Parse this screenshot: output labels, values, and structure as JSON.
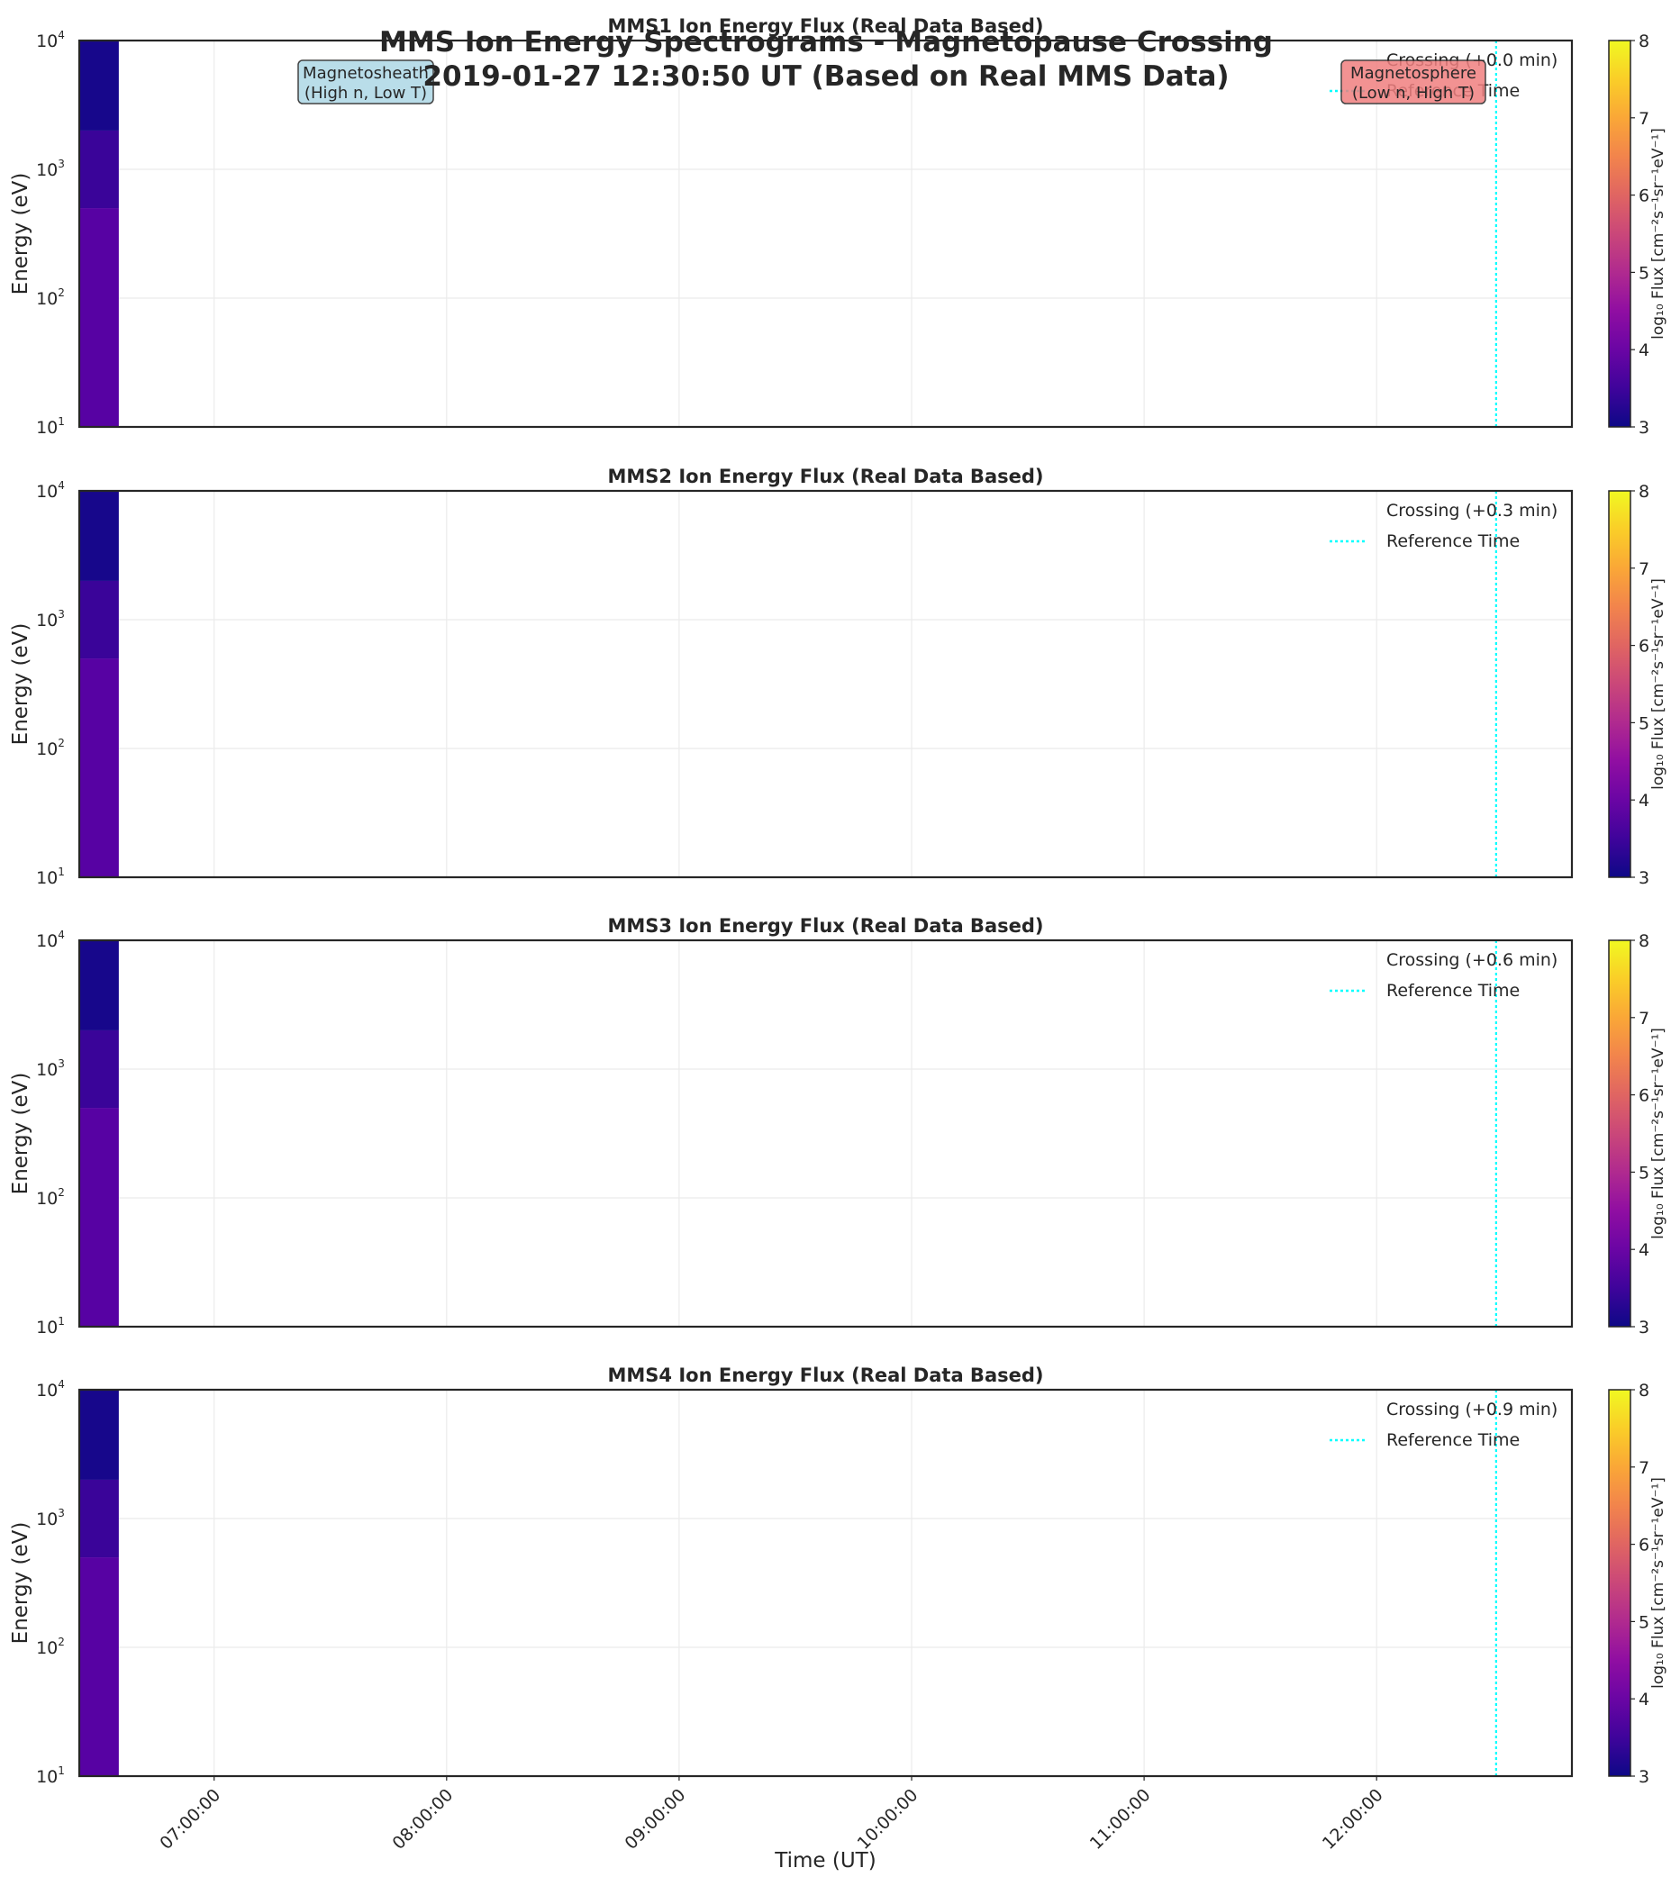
{
  "figure": {
    "suptitle_line1": "MMS Ion Energy Spectrograms - Magnetopause Crossing",
    "suptitle_line2": "2019-01-27 12:30:50 UT (Based on Real MMS Data)"
  },
  "chart_data": {
    "type": "heatmap",
    "xlabel": "Time (UT)",
    "ylabel": "Energy (eV)",
    "x_tick_labels": [
      "07:00:00",
      "08:00:00",
      "09:00:00",
      "10:00:00",
      "11:00:00",
      "12:00:00"
    ],
    "x_tick_hours": [
      7,
      8,
      9,
      10,
      11,
      12
    ],
    "xlim_hours": [
      6.42,
      12.84
    ],
    "reference_time_hours": 12.514,
    "yscale": "log",
    "ylim": [
      10,
      10000
    ],
    "y_ticks": [
      10,
      100,
      1000,
      10000
    ],
    "y_tick_bases": [
      "10",
      "10",
      "10",
      "10"
    ],
    "y_tick_exponents": [
      "1",
      "2",
      "3",
      "4"
    ],
    "colormap": "plasma",
    "colorbar": {
      "label": "log₁₀ Flux [cm⁻²s⁻¹sr⁻¹eV⁻¹]",
      "range": [
        3,
        8
      ],
      "tick_labels": [
        "3",
        "4",
        "5",
        "6",
        "7",
        "8"
      ],
      "tick_values": [
        3,
        4,
        5,
        6,
        7,
        8
      ]
    },
    "grid": true,
    "legend_position": "top-right",
    "legend_reference_label": "Reference Time",
    "panels": [
      {
        "title": "MMS1 Ion Energy Flux (Real Data Based)",
        "crossing_label": "Crossing (+0.0 min)",
        "data_time_range_hours": [
          6.42,
          6.59
        ],
        "flux_bands": [
          {
            "energy_range_eV": [
              10,
              500
            ],
            "log_flux": 3.75
          },
          {
            "energy_range_eV": [
              500,
              2000
            ],
            "log_flux": 3.45
          },
          {
            "energy_range_eV": [
              2000,
              10000
            ],
            "log_flux": 3.1
          }
        ],
        "annotations": [
          {
            "id": "magnetosheath",
            "line1": "Magnetosheath",
            "line2": "(High n, Low T)",
            "color": "#add8e6"
          },
          {
            "id": "magnetosphere",
            "line1": "Magnetosphere",
            "line2": "(Low n, High T)",
            "color": "#f08080"
          }
        ]
      },
      {
        "title": "MMS2 Ion Energy Flux (Real Data Based)",
        "crossing_label": "Crossing (+0.3 min)",
        "data_time_range_hours": [
          6.42,
          6.59
        ],
        "flux_bands": [
          {
            "energy_range_eV": [
              10,
              500
            ],
            "log_flux": 3.75
          },
          {
            "energy_range_eV": [
              500,
              2000
            ],
            "log_flux": 3.45
          },
          {
            "energy_range_eV": [
              2000,
              10000
            ],
            "log_flux": 3.1
          }
        ],
        "annotations": []
      },
      {
        "title": "MMS3 Ion Energy Flux (Real Data Based)",
        "crossing_label": "Crossing (+0.6 min)",
        "data_time_range_hours": [
          6.42,
          6.59
        ],
        "flux_bands": [
          {
            "energy_range_eV": [
              10,
              500
            ],
            "log_flux": 3.75
          },
          {
            "energy_range_eV": [
              500,
              2000
            ],
            "log_flux": 3.45
          },
          {
            "energy_range_eV": [
              2000,
              10000
            ],
            "log_flux": 3.1
          }
        ],
        "annotations": []
      },
      {
        "title": "MMS4 Ion Energy Flux (Real Data Based)",
        "crossing_label": "Crossing (+0.9 min)",
        "data_time_range_hours": [
          6.42,
          6.59
        ],
        "flux_bands": [
          {
            "energy_range_eV": [
              10,
              500
            ],
            "log_flux": 3.75
          },
          {
            "energy_range_eV": [
              500,
              2000
            ],
            "log_flux": 3.45
          },
          {
            "energy_range_eV": [
              2000,
              10000
            ],
            "log_flux": 3.1
          }
        ],
        "annotations": []
      }
    ]
  }
}
